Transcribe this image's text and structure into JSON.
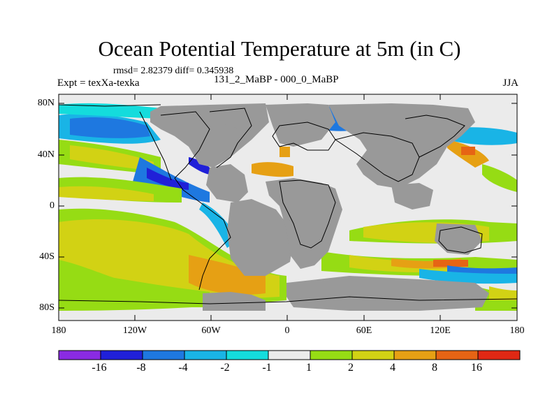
{
  "header": {
    "title": "Ocean Potential Temperature at 5m (in C)",
    "stats": "rmsd= 2.82379 diff= 0.345938",
    "experiment": "Expt = texXa-texka",
    "subtitle": "131_2_MaBP - 000_0_MaBP",
    "season": "JJA"
  },
  "axes": {
    "y_labels": [
      "80N",
      "40N",
      "0",
      "40S",
      "80S"
    ],
    "x_labels": [
      "180",
      "120W",
      "60W",
      "0",
      "60E",
      "120E",
      "180"
    ]
  },
  "colorbar": {
    "labels": [
      "-16",
      "-8",
      "-4",
      "-2",
      "-1",
      "1",
      "2",
      "4",
      "8",
      "16"
    ],
    "colors": [
      "#8a2be2",
      "#2020d8",
      "#1e78e0",
      "#19b4e6",
      "#14dcdc",
      "#ebebeb",
      "#96dc14",
      "#d2d214",
      "#e6a014",
      "#e66414",
      "#e02814"
    ]
  },
  "map_colors": {
    "ocean_neutral": "#ebebeb",
    "land": "#999999",
    "coastline": "#000000"
  }
}
